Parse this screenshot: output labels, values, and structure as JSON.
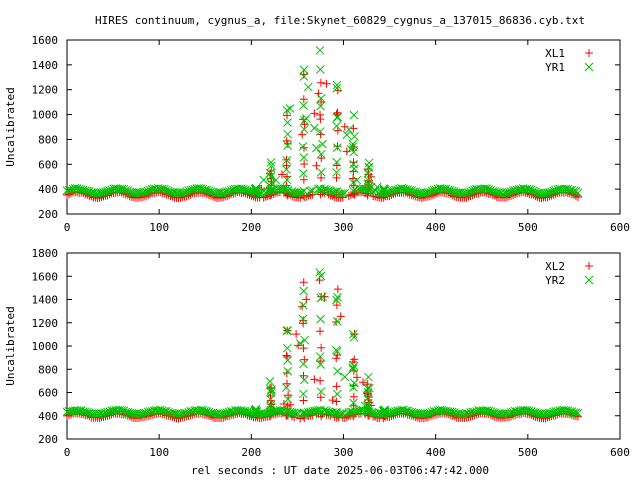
{
  "chart_data": {
    "title": "HIRES continuum, cygnus_a, file:Skynet_60829_cygnus_a_137015_86836.cyb.txt",
    "xlabel": "rel seconds : UT date 2025-06-03T06:47:42.000",
    "colors": {
      "red": "#ff0000",
      "green": "#00c000",
      "frame": "#000000"
    },
    "panels": [
      {
        "type": "scatter",
        "ylabel": "Uncalibrated",
        "xlim": [
          0,
          600
        ],
        "ylim": [
          200,
          1600
        ],
        "xticks": [
          "0",
          "100",
          "200",
          "300",
          "400",
          "500",
          "600"
        ],
        "yticks": [
          "200",
          "400",
          "600",
          "800",
          "1000",
          "1200",
          "1400",
          "1600"
        ],
        "legend_position": "top-right",
        "series": [
          {
            "name": "XL1",
            "marker": "+",
            "color": "#ff0000",
            "baseline": 352,
            "ripple": 22,
            "peak": 1010
          },
          {
            "name": "YR1",
            "marker": "x",
            "color": "#00c000",
            "baseline": 385,
            "ripple": 18,
            "peak": 1100
          }
        ]
      },
      {
        "type": "scatter",
        "ylabel": "Uncalibrated",
        "xlim": [
          0,
          600
        ],
        "ylim": [
          200,
          1800
        ],
        "xticks": [
          "0",
          "100",
          "200",
          "300",
          "400",
          "500",
          "600"
        ],
        "yticks": [
          "200",
          "400",
          "600",
          "800",
          "1000",
          "1200",
          "1400",
          "1600",
          "1800"
        ],
        "legend_position": "top-right",
        "series": [
          {
            "name": "XL2",
            "marker": "+",
            "color": "#ff0000",
            "baseline": 400,
            "ripple": 20,
            "peak": 1180
          },
          {
            "name": "YR2",
            "marker": "x",
            "color": "#00c000",
            "baseline": 430,
            "ripple": 16,
            "peak": 1270
          }
        ]
      }
    ],
    "scan": {
      "x_start": 0,
      "x_end": 556,
      "x_step": 2.2,
      "source_center": 274,
      "source_halfwidth": 76,
      "scan_rows": [
        205,
        221,
        239,
        257,
        275,
        293,
        311,
        327,
        344
      ]
    }
  }
}
